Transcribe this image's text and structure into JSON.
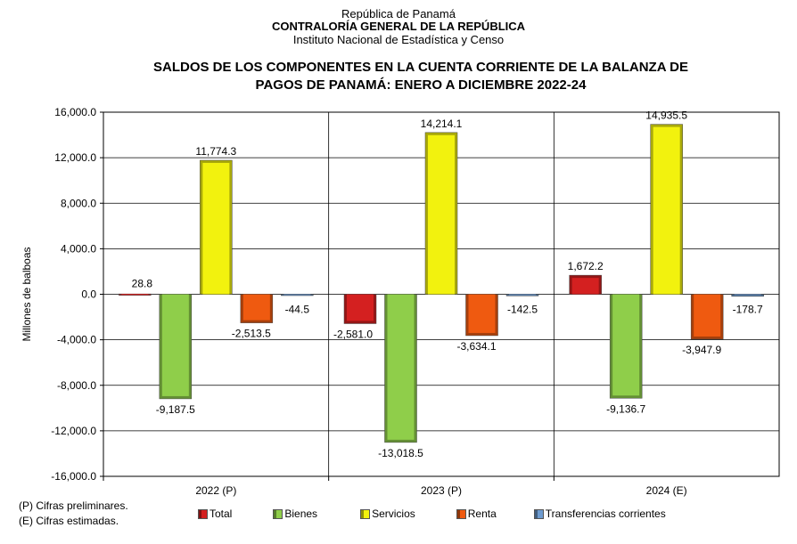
{
  "header": {
    "line1": "República de Panamá",
    "line2": "CONTRALORÍA GENERAL DE LA REPÚBLICA",
    "line3": "Instituto Nacional de Estadística y Censo"
  },
  "colors": {
    "Total": "#d42020",
    "Bienes": "#8fce4a",
    "Servicios": "#f2f20e",
    "Renta": "#ef5a10",
    "Transferencias corrientes": "#6d9bd0"
  },
  "chart_data": {
    "type": "bar",
    "title": "SALDOS DE LOS COMPONENTES EN LA CUENTA CORRIENTE DE LA BALANZA DE PAGOS DE PANAMÁ: ENERO A DICIEMBRE 2022-24",
    "title_lines": [
      "SALDOS DE LOS COMPONENTES EN LA CUENTA CORRIENTE DE LA BALANZA DE",
      "PAGOS DE PANAMÁ: ENERO A DICIEMBRE 2022-24"
    ],
    "xlabel": "",
    "ylabel": "Millones de balboas",
    "ylim": [
      -16000,
      16000
    ],
    "yticks": [
      16000,
      12000,
      8000,
      4000,
      0,
      -4000,
      -8000,
      -12000,
      -16000
    ],
    "ytick_labels": [
      "16,000.0",
      "12,000.0",
      "8,000.0",
      "4,000.0",
      "0.0",
      "-4,000.0",
      "-8,000.0",
      "-12,000.0",
      "-16,000.0"
    ],
    "categories": [
      "2022 (P)",
      "2023 (P)",
      "2024 (E)"
    ],
    "series": [
      {
        "name": "Total",
        "values": [
          28.8,
          -2581.0,
          1672.2
        ],
        "labels": [
          "28.8",
          "-2,581.0",
          "1,672.2"
        ]
      },
      {
        "name": "Bienes",
        "values": [
          -9187.5,
          -13018.5,
          -9136.7
        ],
        "labels": [
          "-9,187.5",
          "-13,018.5",
          "-9,136.7"
        ]
      },
      {
        "name": "Servicios",
        "values": [
          11774.3,
          14214.1,
          14935.5
        ],
        "labels": [
          "11,774.3",
          "14,214.1",
          "14,935.5"
        ]
      },
      {
        "name": "Renta",
        "values": [
          -2513.5,
          -3634.1,
          -3947.9
        ],
        "labels": [
          "-2,513.5",
          "-3,634.1",
          "-3,947.9"
        ]
      },
      {
        "name": "Transferencias corrientes",
        "values": [
          -44.5,
          -142.5,
          -178.7
        ],
        "labels": [
          "-44.5",
          "-142.5",
          "-178.7"
        ]
      }
    ],
    "grid": true,
    "legend": "bottom"
  },
  "notes": {
    "preliminary": "(P) Cifras preliminares.",
    "estimated": "(E) Cifras estimadas."
  }
}
